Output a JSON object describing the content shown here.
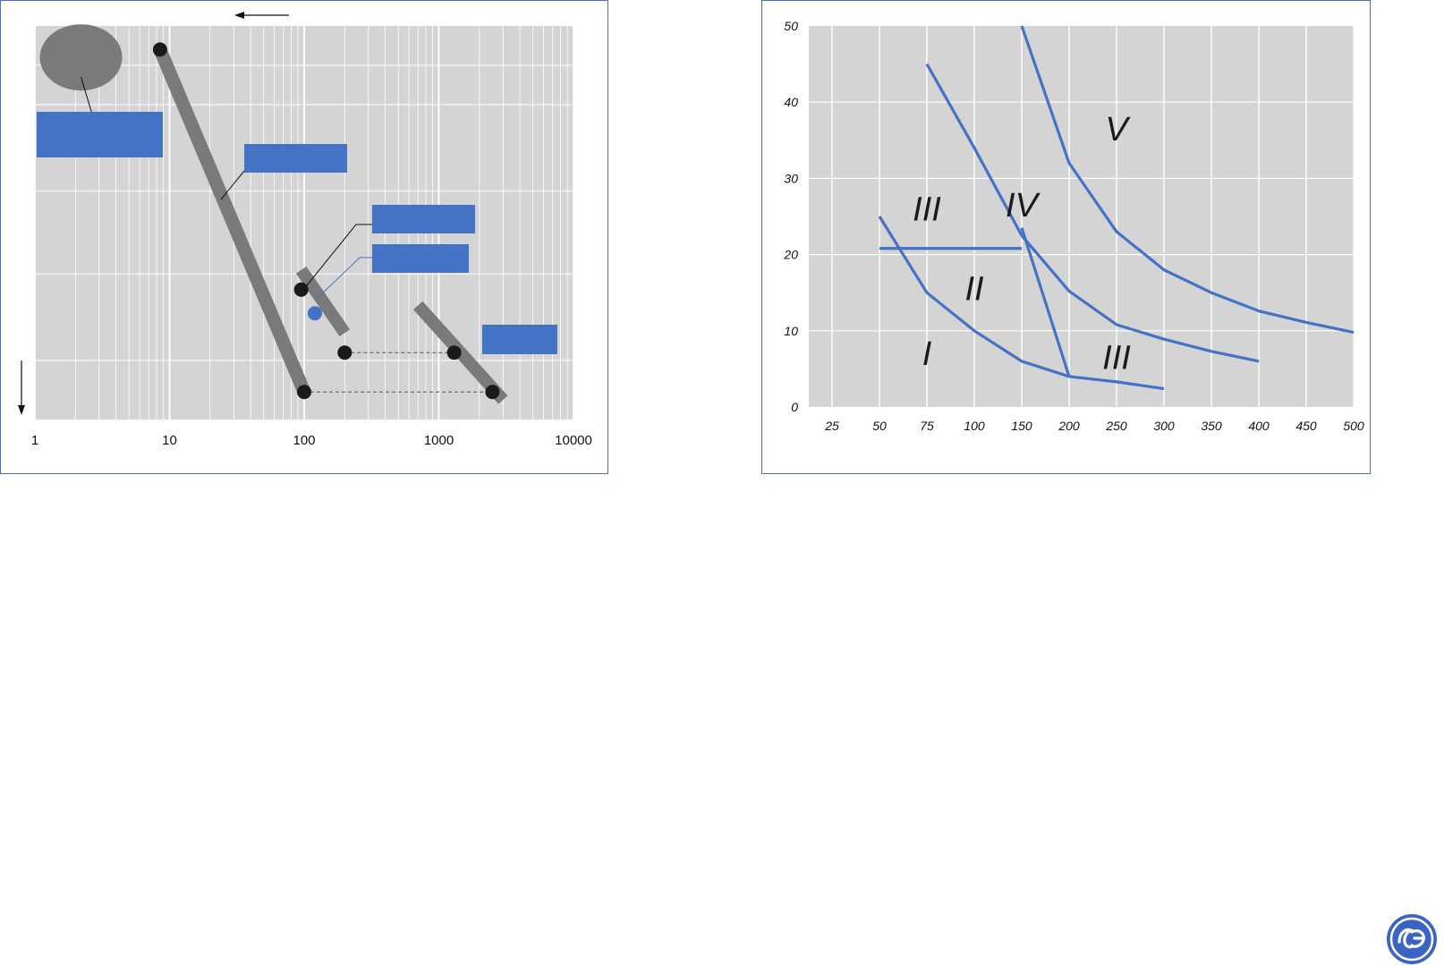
{
  "colors": {
    "plot_bg": "#d4d4d4",
    "grid": "#ffffff",
    "bar": "#7a7a7a",
    "dot": "#1a1a1a",
    "accent": "#4472c4",
    "frame": "#4a6fc4"
  },
  "chart_data": [
    {
      "type": "scatter",
      "scale": "log-x",
      "xlim": [
        1,
        10000
      ],
      "x_tick_labels": [
        "1",
        "10",
        "100",
        "1000",
        "10000"
      ],
      "title": "",
      "xlabel": "",
      "ylabel": "",
      "grid": true,
      "series": [
        {
          "kind": "band",
          "points": [
            [
              8.5,
              0.06
            ],
            [
              100,
              0.93
            ]
          ]
        },
        {
          "kind": "band",
          "points": [
            [
              95,
              0.62
            ],
            [
              200,
              0.78
            ]
          ]
        },
        {
          "kind": "band",
          "points": [
            [
              700,
              0.71
            ],
            [
              3000,
              0.95
            ]
          ]
        }
      ],
      "markers": [
        {
          "x": 8.5,
          "y": 0.06,
          "color": "dot"
        },
        {
          "x": 100,
          "y": 0.93,
          "color": "dot"
        },
        {
          "x": 95,
          "y": 0.67,
          "color": "dot"
        },
        {
          "x": 120,
          "y": 0.73,
          "color": "accent"
        },
        {
          "x": 200,
          "y": 0.83,
          "color": "dot"
        },
        {
          "x": 1300,
          "y": 0.83,
          "color": "dot"
        },
        {
          "x": 2500,
          "y": 0.93,
          "color": "dot"
        }
      ],
      "dashed_links": [
        {
          "from": [
            200,
            0.83
          ],
          "to": [
            1300,
            0.83
          ]
        },
        {
          "from": [
            100,
            0.93
          ],
          "to": [
            2500,
            0.93
          ]
        }
      ],
      "label_boxes": 5,
      "ellipse": {
        "x": 2.2,
        "y": 0.08
      }
    },
    {
      "type": "line",
      "title": "",
      "xlabel": "",
      "ylabel": "",
      "categories": [
        "25",
        "50",
        "75",
        "100",
        "150",
        "200",
        "250",
        "300",
        "350",
        "400",
        "450",
        "500"
      ],
      "ylim": [
        0,
        50
      ],
      "y_tick_labels": [
        "0",
        "10",
        "20",
        "30",
        "40",
        "50"
      ],
      "grid": true,
      "series": [
        {
          "points": [
            [
              "50",
              25
            ],
            [
              "75",
              15
            ],
            [
              "100",
              10
            ],
            [
              "150",
              6
            ],
            [
              "200",
              4
            ],
            [
              "250",
              3.3
            ],
            [
              "300",
              2.4
            ]
          ]
        },
        {
          "points": [
            [
              "75",
              45
            ],
            [
              "100",
              34
            ],
            [
              "150",
              22.5
            ],
            [
              "200",
              15.2
            ],
            [
              "250",
              10.8
            ],
            [
              "300",
              8.9
            ],
            [
              "350",
              7.3
            ],
            [
              "400",
              6
            ]
          ]
        },
        {
          "points": [
            [
              "150",
              50
            ],
            [
              "200",
              32
            ],
            [
              "250",
              23
            ],
            [
              "300",
              18
            ],
            [
              "350",
              15
            ],
            [
              "400",
              12.6
            ],
            [
              "450",
              11.1
            ],
            [
              "500",
              9.8
            ]
          ]
        },
        {
          "points": [
            [
              "150",
              23.5
            ],
            [
              "200",
              4
            ]
          ]
        },
        {
          "points": [
            [
              "50",
              20.8
            ],
            [
              "150",
              20.8
            ]
          ]
        }
      ],
      "regions": [
        {
          "label": "I",
          "x": "75",
          "y": 5.5
        },
        {
          "label": "II",
          "x": "100",
          "y": 14
        },
        {
          "label": "III",
          "x": "75",
          "y": 24.5
        },
        {
          "label": "IV",
          "x": "150",
          "y": 25
        },
        {
          "label": "V",
          "x": "250",
          "y": 35
        },
        {
          "label": "III",
          "x": "250",
          "y": 5
        }
      ]
    }
  ]
}
